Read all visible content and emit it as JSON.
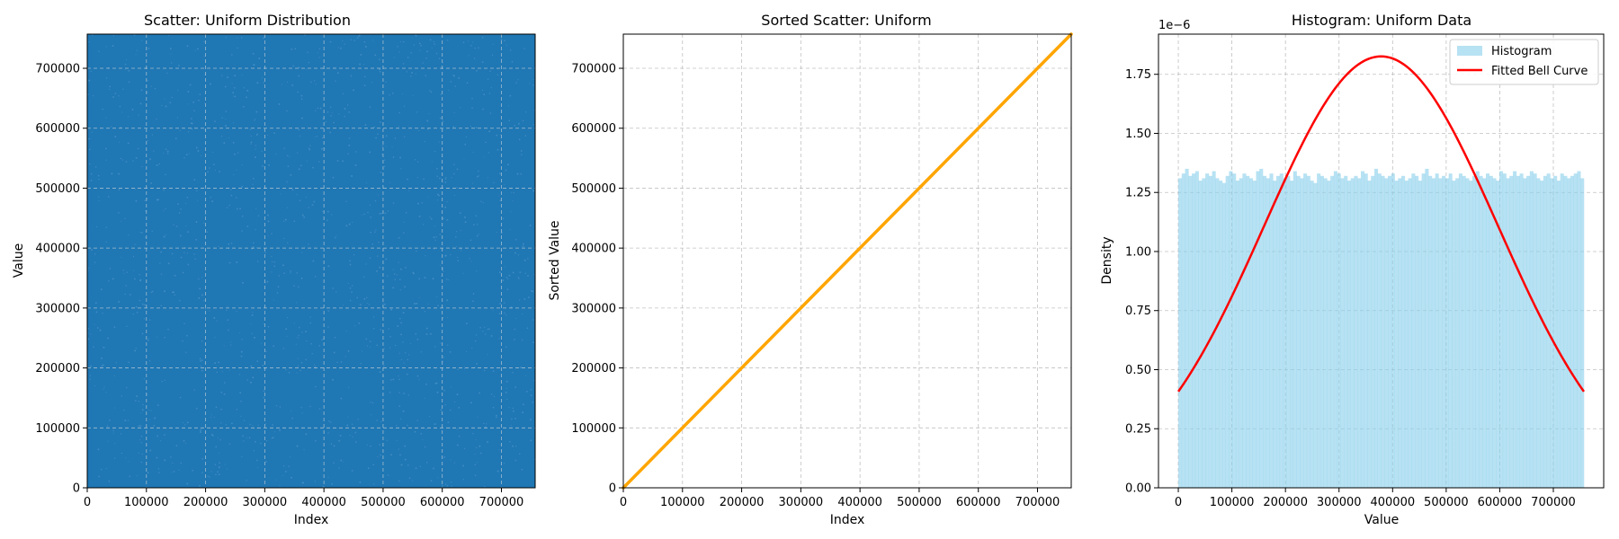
{
  "colors": {
    "scatter": "#1f77b4",
    "sorted_line": "#ffa500",
    "histogram": "#87ceeb",
    "bell_curve": "#ff0000",
    "grid": "#b0b0b0"
  },
  "chart_data": [
    {
      "type": "scatter",
      "title": "Scatter: Uniform Distribution",
      "xlabel": "Index",
      "ylabel": "Value",
      "xlim": [
        0,
        757000
      ],
      "ylim": [
        0,
        757000
      ],
      "xticks": [
        0,
        100000,
        200000,
        300000,
        400000,
        500000,
        600000,
        700000
      ],
      "yticks": [
        0,
        100000,
        200000,
        300000,
        400000,
        500000,
        600000,
        700000
      ],
      "grid": true,
      "n_points": 757000,
      "distribution": "uniform",
      "value_range": [
        0,
        757000
      ]
    },
    {
      "type": "line",
      "title": "Sorted Scatter: Uniform",
      "xlabel": "Index",
      "ylabel": "Sorted Value",
      "xlim": [
        0,
        757000
      ],
      "ylim": [
        0,
        757000
      ],
      "xticks": [
        0,
        100000,
        200000,
        300000,
        400000,
        500000,
        600000,
        700000
      ],
      "yticks": [
        0,
        100000,
        200000,
        300000,
        400000,
        500000,
        600000,
        700000
      ],
      "grid": true,
      "x": [
        0,
        757000
      ],
      "y": [
        0,
        757000
      ]
    },
    {
      "type": "bar",
      "title": "Histogram: Uniform Data",
      "xlabel": "Value",
      "ylabel": "Density",
      "offset_text": "1e−6",
      "xlim": [
        -37000,
        794000
      ],
      "ylim": [
        0,
        1.92
      ],
      "xticks": [
        0,
        100000,
        200000,
        300000,
        400000,
        500000,
        600000,
        700000
      ],
      "yticks": [
        0.0,
        0.25,
        0.5,
        0.75,
        1.0,
        1.25,
        1.5,
        1.75
      ],
      "grid": true,
      "legend": "top-right",
      "series": [
        {
          "name": "Histogram",
          "bin_range": [
            0,
            757000
          ],
          "values": [
            1.31,
            1.33,
            1.35,
            1.32,
            1.33,
            1.34,
            1.3,
            1.31,
            1.33,
            1.32,
            1.34,
            1.31,
            1.3,
            1.29,
            1.32,
            1.34,
            1.33,
            1.3,
            1.31,
            1.33,
            1.32,
            1.31,
            1.3,
            1.34,
            1.35,
            1.32,
            1.31,
            1.33,
            1.3,
            1.32,
            1.33,
            1.31,
            1.32,
            1.3,
            1.34,
            1.32,
            1.31,
            1.33,
            1.32,
            1.3,
            1.29,
            1.33,
            1.32,
            1.31,
            1.3,
            1.32,
            1.34,
            1.33,
            1.31,
            1.32,
            1.3,
            1.31,
            1.32,
            1.31,
            1.34,
            1.33,
            1.3,
            1.32,
            1.35,
            1.33,
            1.32,
            1.31,
            1.32,
            1.33,
            1.3,
            1.31,
            1.32,
            1.3,
            1.31,
            1.33,
            1.32,
            1.3,
            1.33,
            1.35,
            1.32,
            1.31,
            1.33,
            1.31,
            1.32,
            1.31,
            1.33,
            1.3,
            1.31,
            1.33,
            1.32,
            1.31,
            1.3,
            1.32,
            1.34,
            1.32,
            1.31,
            1.33,
            1.32,
            1.31,
            1.3,
            1.34,
            1.33,
            1.31,
            1.32,
            1.34,
            1.32,
            1.33,
            1.31,
            1.32,
            1.34,
            1.33,
            1.31,
            1.3,
            1.32,
            1.33,
            1.31,
            1.32,
            1.3,
            1.33,
            1.32,
            1.31,
            1.32,
            1.33,
            1.34,
            1.31
          ]
        },
        {
          "name": "Fitted Bell Curve",
          "mean": 378500,
          "std": 218500,
          "x_range": [
            0,
            757000
          ]
        }
      ]
    }
  ]
}
